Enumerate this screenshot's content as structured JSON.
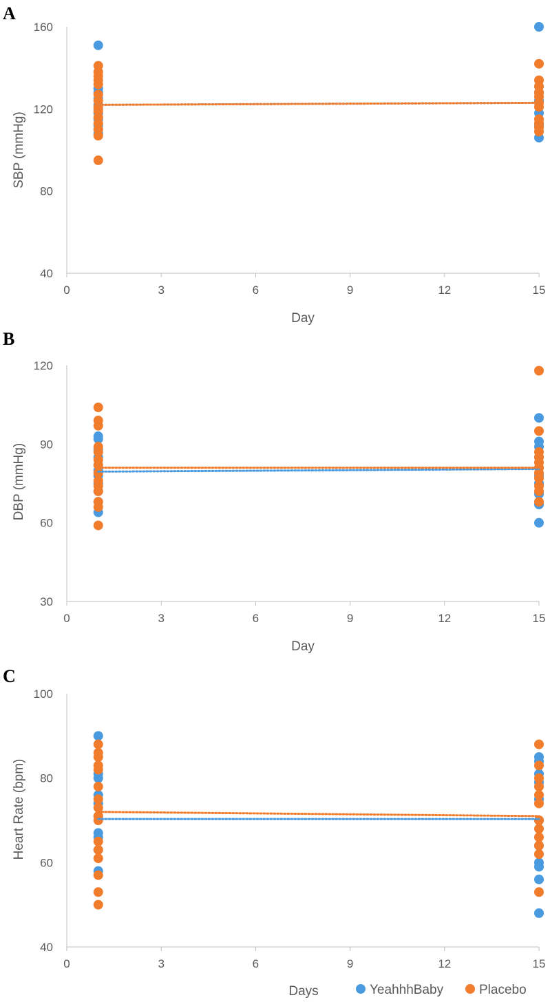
{
  "legend": {
    "items": [
      {
        "label": "YeahhhBaby",
        "color": "#4a9ae0"
      },
      {
        "label": "Placebo",
        "color": "#f07c2c"
      }
    ],
    "position": "bottom-right"
  },
  "chart_data": [
    {
      "type": "scatter",
      "panel_label": "A",
      "xlabel": "Day",
      "ylabel": "SBP (mmHg)",
      "xlim": [
        0,
        15
      ],
      "ylim": [
        40,
        160
      ],
      "xticks": [
        0,
        3,
        6,
        9,
        12,
        15
      ],
      "yticks": [
        40,
        80,
        120,
        160
      ],
      "grid": false,
      "series": [
        {
          "name": "YeahhhBaby",
          "color": "#4a9ae0",
          "points": [
            [
              1,
              151
            ],
            [
              1,
              130
            ],
            [
              1,
              128
            ],
            [
              1,
              125
            ],
            [
              1,
              122
            ],
            [
              1,
              120
            ],
            [
              1,
              118
            ],
            [
              1,
              115
            ],
            [
              1,
              112
            ],
            [
              1,
              110
            ],
            [
              1,
              108
            ],
            [
              15,
              160
            ],
            [
              15,
              131
            ],
            [
              15,
              128
            ],
            [
              15,
              124
            ],
            [
              15,
              118
            ],
            [
              15,
              112
            ],
            [
              15,
              106
            ]
          ],
          "trend": [
            [
              1,
              122
            ],
            [
              15,
              123
            ]
          ]
        },
        {
          "name": "Placebo",
          "color": "#f07c2c",
          "points": [
            [
              1,
              141
            ],
            [
              1,
              138
            ],
            [
              1,
              136
            ],
            [
              1,
              134
            ],
            [
              1,
              132
            ],
            [
              1,
              127
            ],
            [
              1,
              124
            ],
            [
              1,
              121
            ],
            [
              1,
              119
            ],
            [
              1,
              116
            ],
            [
              1,
              113
            ],
            [
              1,
              110
            ],
            [
              1,
              107
            ],
            [
              1,
              95
            ],
            [
              15,
              142
            ],
            [
              15,
              134
            ],
            [
              15,
              131
            ],
            [
              15,
              128
            ],
            [
              15,
              126
            ],
            [
              15,
              123
            ],
            [
              15,
              121
            ],
            [
              15,
              115
            ],
            [
              15,
              113
            ],
            [
              15,
              111
            ],
            [
              15,
              109
            ]
          ],
          "trend": [
            [
              1,
              122
            ],
            [
              15,
              123
            ]
          ]
        }
      ]
    },
    {
      "type": "scatter",
      "panel_label": "B",
      "xlabel": "Day",
      "ylabel": "DBP (mmHg)",
      "xlim": [
        0,
        15
      ],
      "ylim": [
        30,
        120
      ],
      "xticks": [
        0,
        3,
        6,
        9,
        12,
        15
      ],
      "yticks": [
        30,
        60,
        90,
        120
      ],
      "grid": false,
      "series": [
        {
          "name": "YeahhhBaby",
          "color": "#4a9ae0",
          "points": [
            [
              1,
              93
            ],
            [
              1,
              92
            ],
            [
              1,
              88
            ],
            [
              1,
              85
            ],
            [
              1,
              82
            ],
            [
              1,
              80
            ],
            [
              1,
              78
            ],
            [
              1,
              75
            ],
            [
              1,
              72
            ],
            [
              1,
              68
            ],
            [
              1,
              64
            ],
            [
              15,
              100
            ],
            [
              15,
              91
            ],
            [
              15,
              89
            ],
            [
              15,
              85
            ],
            [
              15,
              81
            ],
            [
              15,
              78
            ],
            [
              15,
              75
            ],
            [
              15,
              71
            ],
            [
              15,
              67
            ],
            [
              15,
              60
            ]
          ],
          "trend": [
            [
              1,
              79.5
            ],
            [
              15,
              80.5
            ]
          ]
        },
        {
          "name": "Placebo",
          "color": "#f07c2c",
          "points": [
            [
              1,
              104
            ],
            [
              1,
              99
            ],
            [
              1,
              97
            ],
            [
              1,
              89
            ],
            [
              1,
              87
            ],
            [
              1,
              84
            ],
            [
              1,
              82
            ],
            [
              1,
              79
            ],
            [
              1,
              76
            ],
            [
              1,
              74
            ],
            [
              1,
              72
            ],
            [
              1,
              68
            ],
            [
              1,
              66
            ],
            [
              1,
              59
            ],
            [
              15,
              118
            ],
            [
              15,
              95
            ],
            [
              15,
              87
            ],
            [
              15,
              85
            ],
            [
              15,
              83
            ],
            [
              15,
              81
            ],
            [
              15,
              79
            ],
            [
              15,
              77
            ],
            [
              15,
              74
            ],
            [
              15,
              72
            ],
            [
              15,
              68
            ]
          ],
          "trend": [
            [
              1,
              81
            ],
            [
              15,
              81
            ]
          ]
        }
      ]
    },
    {
      "type": "scatter",
      "panel_label": "C",
      "xlabel": "Days",
      "ylabel": "Heart Rate (bpm)",
      "xlim": [
        0,
        15
      ],
      "ylim": [
        40,
        100
      ],
      "xticks": [
        0,
        3,
        6,
        9,
        12,
        15
      ],
      "yticks": [
        40,
        60,
        80,
        100
      ],
      "grid": false,
      "series": [
        {
          "name": "YeahhhBaby",
          "color": "#4a9ae0",
          "points": [
            [
              1,
              90
            ],
            [
              1,
              81
            ],
            [
              1,
              80
            ],
            [
              1,
              76
            ],
            [
              1,
              74
            ],
            [
              1,
              71
            ],
            [
              1,
              67
            ],
            [
              1,
              66
            ],
            [
              1,
              63
            ],
            [
              1,
              58
            ],
            [
              15,
              85
            ],
            [
              15,
              84
            ],
            [
              15,
              81
            ],
            [
              15,
              79
            ],
            [
              15,
              75
            ],
            [
              15,
              70
            ],
            [
              15,
              64
            ],
            [
              15,
              60
            ],
            [
              15,
              59
            ],
            [
              15,
              56
            ],
            [
              15,
              48
            ]
          ],
          "trend": [
            [
              1,
              70.3
            ],
            [
              15,
              70.3
            ]
          ]
        },
        {
          "name": "Placebo",
          "color": "#f07c2c",
          "points": [
            [
              1,
              88
            ],
            [
              1,
              86
            ],
            [
              1,
              85
            ],
            [
              1,
              83
            ],
            [
              1,
              82
            ],
            [
              1,
              78
            ],
            [
              1,
              75
            ],
            [
              1,
              73
            ],
            [
              1,
              71
            ],
            [
              1,
              70
            ],
            [
              1,
              65
            ],
            [
              1,
              63
            ],
            [
              1,
              61
            ],
            [
              1,
              57
            ],
            [
              1,
              53
            ],
            [
              1,
              50
            ],
            [
              15,
              88
            ],
            [
              15,
              83
            ],
            [
              15,
              80
            ],
            [
              15,
              78
            ],
            [
              15,
              76
            ],
            [
              15,
              74
            ],
            [
              15,
              70
            ],
            [
              15,
              68
            ],
            [
              15,
              66
            ],
            [
              15,
              64
            ],
            [
              15,
              62
            ],
            [
              15,
              53
            ]
          ],
          "trend": [
            [
              1,
              72
            ],
            [
              15,
              71
            ]
          ]
        }
      ]
    }
  ]
}
